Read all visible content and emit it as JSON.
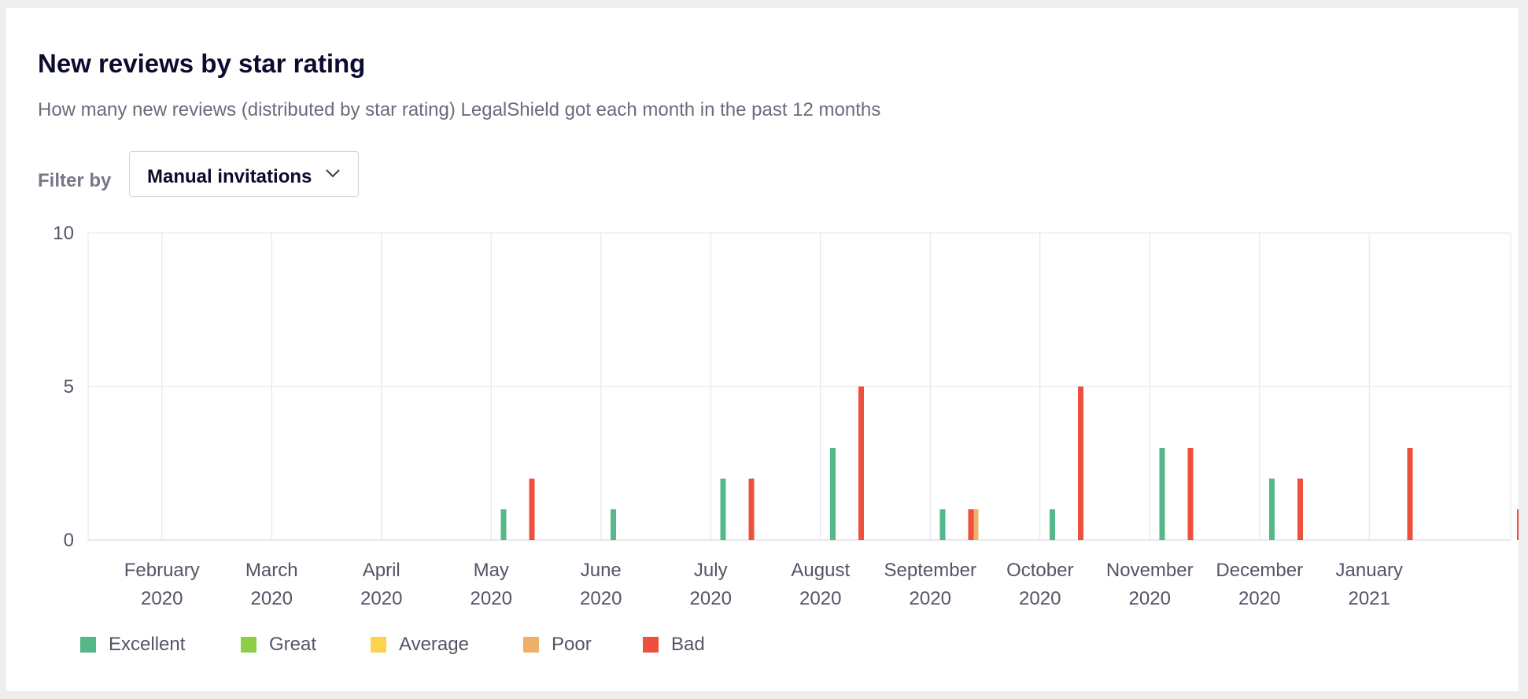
{
  "header": {
    "title": "New reviews by star rating",
    "subtitle": "How many new reviews (distributed by star rating) LegalShield got each month in the past 12 months"
  },
  "filter": {
    "label": "Filter by",
    "value": "Manual invitations",
    "icon": "chevron-down-icon"
  },
  "chart_data": {
    "type": "bar",
    "categories": [
      [
        "February",
        "2020"
      ],
      [
        "March",
        "2020"
      ],
      [
        "April",
        "2020"
      ],
      [
        "May",
        "2020"
      ],
      [
        "June",
        "2020"
      ],
      [
        "July",
        "2020"
      ],
      [
        "August",
        "2020"
      ],
      [
        "September",
        "2020"
      ],
      [
        "October",
        "2020"
      ],
      [
        "November",
        "2020"
      ],
      [
        "December",
        "2020"
      ],
      [
        "January",
        "2021"
      ]
    ],
    "series": [
      {
        "name": "Excellent",
        "color": "#54b889",
        "values": [
          0,
          0,
          1,
          1,
          2,
          3,
          1,
          1,
          3,
          2,
          0,
          0
        ]
      },
      {
        "name": "Great",
        "color": "#8ccf45",
        "values": [
          0,
          0,
          0,
          0,
          0,
          0,
          0,
          0,
          0,
          0,
          0,
          0
        ]
      },
      {
        "name": "Average",
        "color": "#fdd34d",
        "values": [
          0,
          0,
          0,
          0,
          0,
          0,
          0,
          0,
          0,
          0,
          0,
          0
        ]
      },
      {
        "name": "Poor",
        "color": "#eeb066",
        "values": [
          0,
          0,
          0,
          0,
          0,
          0,
          1,
          0,
          0,
          0,
          0,
          0
        ]
      },
      {
        "name": "Bad",
        "color": "#ef4f3d",
        "values": [
          0,
          0,
          2,
          0,
          2,
          5,
          1,
          5,
          3,
          2,
          3,
          1
        ]
      }
    ],
    "yticks": [
      0,
      5,
      10
    ],
    "ylim": [
      0,
      10
    ],
    "grid": true,
    "legend_position": "bottom-left"
  }
}
